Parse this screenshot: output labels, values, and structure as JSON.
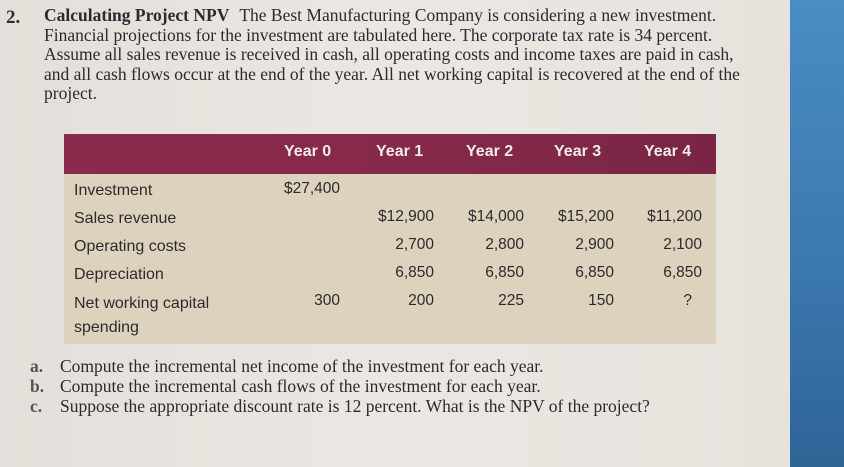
{
  "problem": {
    "number": "2.",
    "title": "Calculating Project NPV",
    "body": "The Best Manufacturing Company is considering a new investment. Financial projections for the investment are tabulated here. The corporate tax rate is 34 percent. Assume all sales revenue is received in cash, all operating costs and income taxes are paid in cash, and all cash flows occur at the end of the year. All net working capital is recovered at the end of the project."
  },
  "table": {
    "headers": [
      "Year 0",
      "Year 1",
      "Year 2",
      "Year 3",
      "Year 4"
    ],
    "rows": [
      {
        "label": "Investment",
        "values": [
          "$27,400",
          "",
          "",
          "",
          ""
        ]
      },
      {
        "label": "Sales revenue",
        "values": [
          "",
          "$12,900",
          "$14,000",
          "$15,200",
          "$11,200"
        ]
      },
      {
        "label": "Operating costs",
        "values": [
          "",
          "2,700",
          "2,800",
          "2,900",
          "2,100"
        ]
      },
      {
        "label": "Depreciation",
        "values": [
          "",
          "6,850",
          "6,850",
          "6,850",
          "6,850"
        ]
      },
      {
        "label": "Net working capital spending",
        "values": [
          "300",
          "200",
          "225",
          "150",
          "?"
        ]
      }
    ]
  },
  "questions": [
    {
      "letter": "a.",
      "text": "Compute the incremental net income of the investment for each year."
    },
    {
      "letter": "b.",
      "text": "Compute the incremental cash flows of the investment for each year."
    },
    {
      "letter": "c.",
      "text": "Suppose the appropriate discount rate is 12 percent. What is the NPV of the project?"
    }
  ],
  "colors": {
    "header_bg": "#84294a",
    "body_bg": "#dcd2bd",
    "edge": "#3b79b0"
  }
}
